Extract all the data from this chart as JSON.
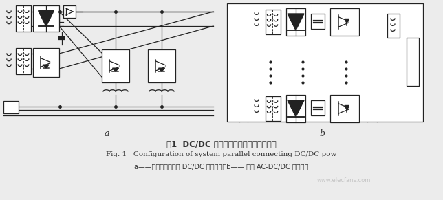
{
  "fig_title_cn": "图1  DC/DC 电源模块并联的系统结构框图",
  "fig_title_en": "Fig. 1   Configuration of system parallel connecting DC/DC pow",
  "fig_caption": "a——基于直流母线的 DC/DC 电源并联；b—— 独立 AC-DC/DC 电源并联",
  "label_a": "a",
  "label_b": "b",
  "bg_color": "#ececec",
  "line_color": "#222222",
  "box_color": "#ffffff",
  "text_color": "#333333",
  "watermark_text": "www.elecfans.com",
  "watermark_color": "#bbbbbb"
}
